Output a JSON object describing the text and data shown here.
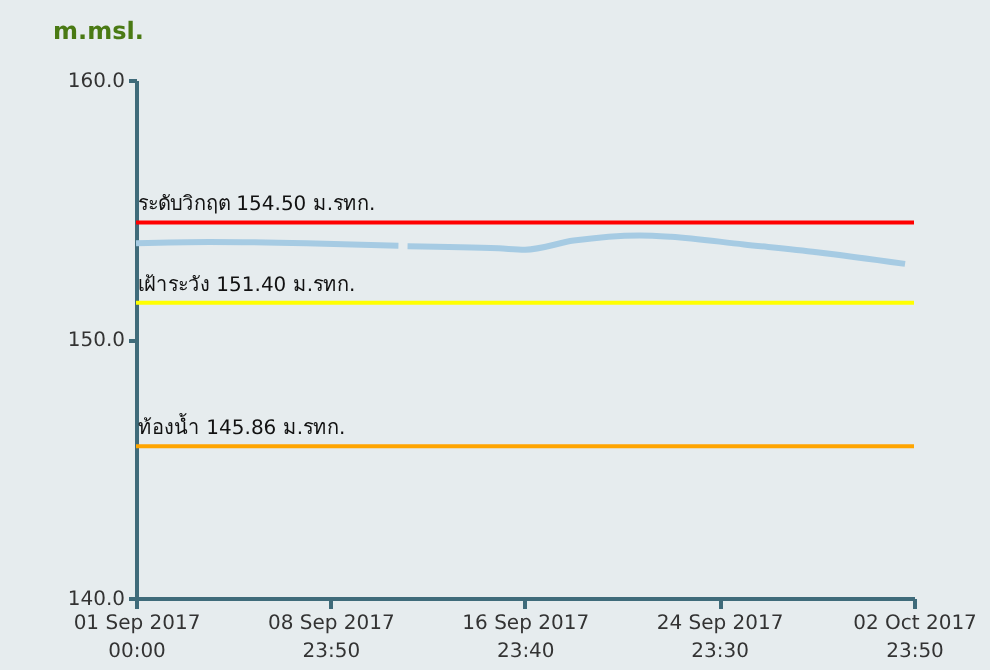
{
  "chart_data": {
    "type": "line",
    "ylabel": "m.msl.",
    "x": [
      "2017-09-01T00:00",
      "2017-09-04T00:00",
      "2017-09-08T00:00",
      "2017-09-11T19:00",
      "2017-09-11T23:00",
      "2017-09-12T04:00",
      "2017-09-15T22:00",
      "2017-09-17T00:00",
      "2017-09-19T00:00",
      "2017-09-21T17:00",
      "2017-09-23T00:00",
      "2017-09-26T00:00",
      "2017-09-29T00:00",
      "2017-10-02T15:00"
    ],
    "series": [
      {
        "color": "#a6cbe3",
        "values": [
          153.7,
          153.75,
          153.7,
          153.6,
          null,
          153.58,
          153.5,
          153.45,
          153.8,
          154.0,
          153.95,
          153.65,
          153.35,
          152.9
        ]
      }
    ],
    "xlim": [
      "2017-09-01T00:00",
      "2017-10-02T23:50"
    ],
    "xticks": [
      {
        "value": "2017-09-01T00:00",
        "label": "01 Sep 2017\n00:00"
      },
      {
        "value": "2017-09-08T23:50",
        "label": "08 Sep 2017\n23:50"
      },
      {
        "value": "2017-09-16T23:40",
        "label": "16 Sep 2017\n23:40"
      },
      {
        "value": "2017-09-24T23:30",
        "label": "24 Sep 2017\n23:30"
      },
      {
        "value": "2017-10-02T23:50",
        "label": "02 Oct 2017\n23:50"
      }
    ],
    "ylim": [
      140,
      160
    ],
    "yticks": [
      {
        "value": 140,
        "label": "140.0"
      },
      {
        "value": 150,
        "label": "150.0"
      },
      {
        "value": 160,
        "label": "160.0"
      }
    ],
    "ref_lines": [
      {
        "axis": "y",
        "value": 154.5,
        "label": "ระดับวิกฤต 154.50 ม.รทก.",
        "color": "#ff0000"
      },
      {
        "axis": "y",
        "value": 151.4,
        "label": "เฝ้าระวัง 151.40 ม.รทก.",
        "color": "#ffff00"
      },
      {
        "axis": "y",
        "value": 145.86,
        "label": "ท้องน้ำ 145.86 ม.รทก.",
        "color": "#ffa500"
      }
    ],
    "grid": false,
    "marker": "none",
    "line_style": "solid"
  }
}
